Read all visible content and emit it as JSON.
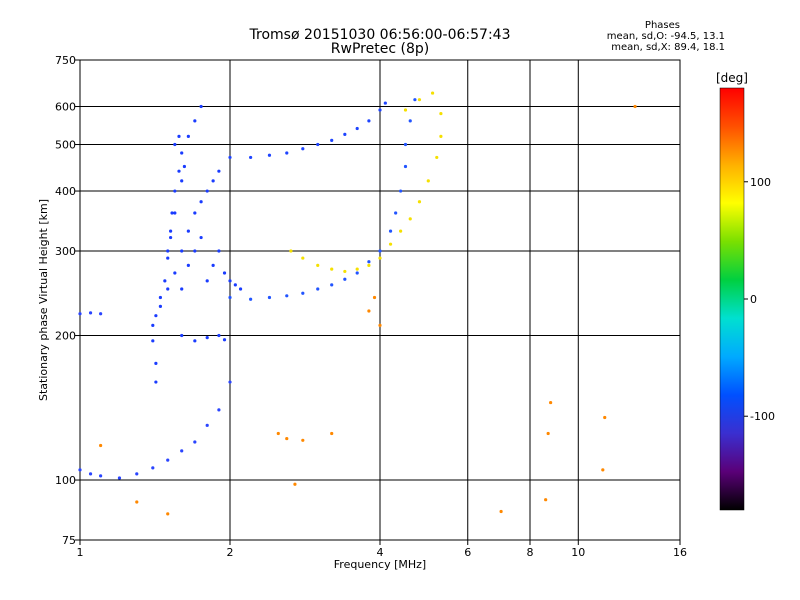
{
  "chart_data": {
    "type": "scatter",
    "title": "Tromsø 20151030 06:56:00-06:57:43",
    "subtitle": "RwPretec (8p)",
    "xlabel": "Frequency [MHz]",
    "ylabel": "Stationary phase Virtual Height [km]",
    "xscale": "log",
    "yscale": "log",
    "xlim": [
      1,
      16
    ],
    "ylim": [
      75,
      750
    ],
    "x_ticks": [
      1,
      2,
      4,
      6,
      8,
      10,
      16
    ],
    "y_ticks": [
      75,
      100,
      200,
      300,
      400,
      500,
      600,
      750
    ],
    "grid": true,
    "legend": {
      "title": "Phases",
      "lines": [
        "mean, sd,O: -94.5, 13.1",
        "mean, sd,X:  89.4, 18.1"
      ],
      "placement": "top-right"
    },
    "colorbar": {
      "label": "[deg]",
      "ticks": [
        100,
        0,
        -100
      ],
      "range": [
        -180,
        180
      ],
      "colors": [
        "#000000",
        "#5a0078",
        "#3a2fd0",
        "#0050ff",
        "#00aaff",
        "#00e0d0",
        "#00d040",
        "#7ae000",
        "#ffff00",
        "#ffb000",
        "#ff5000",
        "#ff0000"
      ]
    },
    "series": [
      {
        "kind": "O-mode F-layer cusp",
        "points": [
          [
            1.42,
            160
          ],
          [
            1.42,
            175
          ],
          [
            1.4,
            195
          ],
          [
            1.4,
            210
          ],
          [
            1.42,
            220
          ],
          [
            1.45,
            240
          ],
          [
            1.48,
            260
          ],
          [
            1.5,
            290
          ],
          [
            1.52,
            320
          ],
          [
            1.53,
            360
          ],
          [
            1.55,
            400
          ],
          [
            1.58,
            440
          ],
          [
            1.6,
            480
          ],
          [
            1.65,
            520
          ],
          [
            1.7,
            560
          ],
          [
            1.75,
            600
          ],
          [
            1.45,
            230
          ],
          [
            1.5,
            250
          ],
          [
            1.55,
            270
          ],
          [
            1.6,
            300
          ],
          [
            1.65,
            330
          ],
          [
            1.7,
            360
          ],
          [
            1.75,
            380
          ],
          [
            1.8,
            400
          ],
          [
            1.85,
            420
          ],
          [
            1.9,
            440
          ],
          [
            1.5,
            300
          ],
          [
            1.52,
            330
          ],
          [
            1.55,
            360
          ],
          [
            1.6,
            420
          ],
          [
            1.62,
            450
          ],
          [
            1.55,
            500
          ],
          [
            1.58,
            520
          ],
          [
            1.6,
            250
          ],
          [
            1.65,
            280
          ],
          [
            1.7,
            300
          ],
          [
            1.75,
            320
          ],
          [
            1.8,
            260
          ],
          [
            1.85,
            280
          ],
          [
            1.9,
            300
          ],
          [
            1.95,
            270
          ],
          [
            2.0,
            260
          ],
          [
            2.05,
            255
          ],
          [
            2.1,
            250
          ],
          [
            1.6,
            200
          ],
          [
            1.7,
            195
          ],
          [
            1.8,
            198
          ],
          [
            1.9,
            200
          ],
          [
            1.95,
            196
          ]
        ],
        "color": "#1a3cff"
      },
      {
        "kind": "F2 O-mode trace",
        "points": [
          [
            2.0,
            240
          ],
          [
            2.2,
            238
          ],
          [
            2.4,
            240
          ],
          [
            2.6,
            242
          ],
          [
            2.8,
            245
          ],
          [
            3.0,
            250
          ],
          [
            3.2,
            255
          ],
          [
            3.4,
            262
          ],
          [
            3.6,
            270
          ],
          [
            3.8,
            285
          ],
          [
            4.0,
            300
          ],
          [
            4.2,
            330
          ],
          [
            4.3,
            360
          ],
          [
            4.4,
            400
          ],
          [
            4.5,
            450
          ],
          [
            4.5,
            500
          ],
          [
            4.6,
            560
          ],
          [
            4.7,
            620
          ]
        ],
        "color": "#2255ff"
      },
      {
        "kind": "upper O-mode trace",
        "points": [
          [
            2.0,
            470
          ],
          [
            2.2,
            470
          ],
          [
            2.4,
            475
          ],
          [
            2.6,
            480
          ],
          [
            2.8,
            490
          ],
          [
            3.0,
            500
          ],
          [
            3.2,
            510
          ],
          [
            3.4,
            525
          ],
          [
            3.6,
            540
          ],
          [
            3.8,
            560
          ],
          [
            4.0,
            590
          ],
          [
            4.1,
            610
          ]
        ],
        "color": "#1e44ff"
      },
      {
        "kind": "X-mode trace",
        "points": [
          [
            2.65,
            300
          ],
          [
            2.8,
            290
          ],
          [
            3.0,
            280
          ],
          [
            3.2,
            275
          ],
          [
            3.4,
            272
          ],
          [
            3.6,
            275
          ],
          [
            3.8,
            280
          ],
          [
            4.0,
            290
          ],
          [
            4.2,
            310
          ],
          [
            4.4,
            330
          ],
          [
            4.6,
            350
          ],
          [
            4.8,
            380
          ],
          [
            5.0,
            420
          ],
          [
            5.2,
            470
          ],
          [
            5.3,
            520
          ],
          [
            5.3,
            580
          ],
          [
            5.1,
            640
          ],
          [
            4.8,
            620
          ],
          [
            4.5,
            590
          ]
        ],
        "color": "#f5e000"
      },
      {
        "kind": "E-region / low echoes",
        "points": [
          [
            1.0,
            105
          ],
          [
            1.05,
            103
          ],
          [
            1.1,
            102
          ],
          [
            1.2,
            101
          ],
          [
            1.3,
            103
          ],
          [
            1.4,
            106
          ],
          [
            1.5,
            110
          ],
          [
            1.6,
            115
          ],
          [
            1.7,
            120
          ],
          [
            1.8,
            130
          ],
          [
            1.9,
            140
          ],
          [
            2.0,
            160
          ],
          [
            1.0,
            222
          ],
          [
            1.05,
            223
          ],
          [
            1.1,
            222
          ]
        ],
        "color": "#2a45ff"
      },
      {
        "kind": "scattered",
        "points": [
          [
            2.5,
            125
          ],
          [
            2.6,
            122
          ],
          [
            2.8,
            121
          ],
          [
            3.2,
            125
          ],
          [
            3.8,
            225
          ],
          [
            3.9,
            240
          ],
          [
            4.0,
            210
          ],
          [
            2.7,
            98
          ],
          [
            7.0,
            86
          ],
          [
            8.6,
            91
          ],
          [
            8.7,
            125
          ],
          [
            8.8,
            145
          ],
          [
            11.2,
            105
          ],
          [
            11.3,
            135
          ],
          [
            13.0,
            600
          ],
          [
            1.1,
            118
          ],
          [
            1.3,
            90
          ],
          [
            1.5,
            85
          ]
        ],
        "color": "#ff8800"
      }
    ]
  }
}
